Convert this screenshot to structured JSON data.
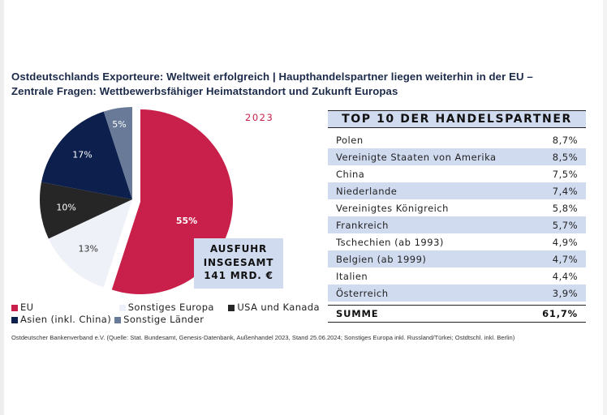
{
  "title": {
    "line1": "Ostdeutschlands Exporteure: Weltweit erfolgreich | Haupthandelspartner liegen weiterhin in der EU –",
    "line2": "Zentrale Fragen: Wettbewerbsfähiger Heimatstandort und Zukunft Europas"
  },
  "chart_data": {
    "type": "pie",
    "title": "2023",
    "slices": [
      {
        "name": "EU",
        "value": 55,
        "label": "55%",
        "color": "#c8204a",
        "label_color": "#ffffff"
      },
      {
        "name": "Sonstiges Europa",
        "value": 13,
        "label": "13%",
        "color": "#eef1f7",
        "label_color": "#333333"
      },
      {
        "name": "USA und Kanada",
        "value": 10,
        "label": "10%",
        "color": "#262626",
        "label_color": "#ffffff"
      },
      {
        "name": "Asien (inkl. China)",
        "value": 17,
        "label": "17%",
        "color": "#0d1f4d",
        "label_color": "#ffffff"
      },
      {
        "name": "Sonstige Länder",
        "value": 5,
        "label": "5%",
        "color": "#687a98",
        "label_color": "#ffffff"
      }
    ],
    "legend": [
      "EU",
      "Sonstiges Europa",
      "USA und Kanada",
      "Asien (inkl. China)",
      "Sonstige Länder"
    ],
    "legend_placement": "bottom",
    "callout": {
      "line1": "AUSFUHR",
      "line2": "INSGESAMT",
      "line3": "141 MRD. €"
    }
  },
  "table": {
    "header": "TOP 10 DER HANDELSPARTNER",
    "rows": [
      {
        "country": "Polen",
        "share": "8,7%"
      },
      {
        "country": "Vereinigte Staaten von Amerika",
        "share": "8,5%"
      },
      {
        "country": "China",
        "share": "7,5%"
      },
      {
        "country": "Niederlande",
        "share": "7,4%"
      },
      {
        "country": "Vereinigtes Königreich",
        "share": "5,8%"
      },
      {
        "country": "Frankreich",
        "share": "5,7%"
      },
      {
        "country": "Tschechien (ab 1993)",
        "share": "4,9%"
      },
      {
        "country": "Belgien (ab 1999)",
        "share": "4,7%"
      },
      {
        "country": "Italien",
        "share": "4,4%"
      },
      {
        "country": "Österreich",
        "share": "3,9%"
      }
    ],
    "sum_label": "SUMME",
    "sum_value": "61,7%"
  },
  "source": "Ostdeutscher Bankenverband e.V. (Quelle: Stat. Bundesamt, Genesis-Datenbank, Außenhandel 2023, Stand 25.06.2024; Sonstiges Europa inkl. Russland/Türkei; Ostdtschl. inkl. Berlin)"
}
